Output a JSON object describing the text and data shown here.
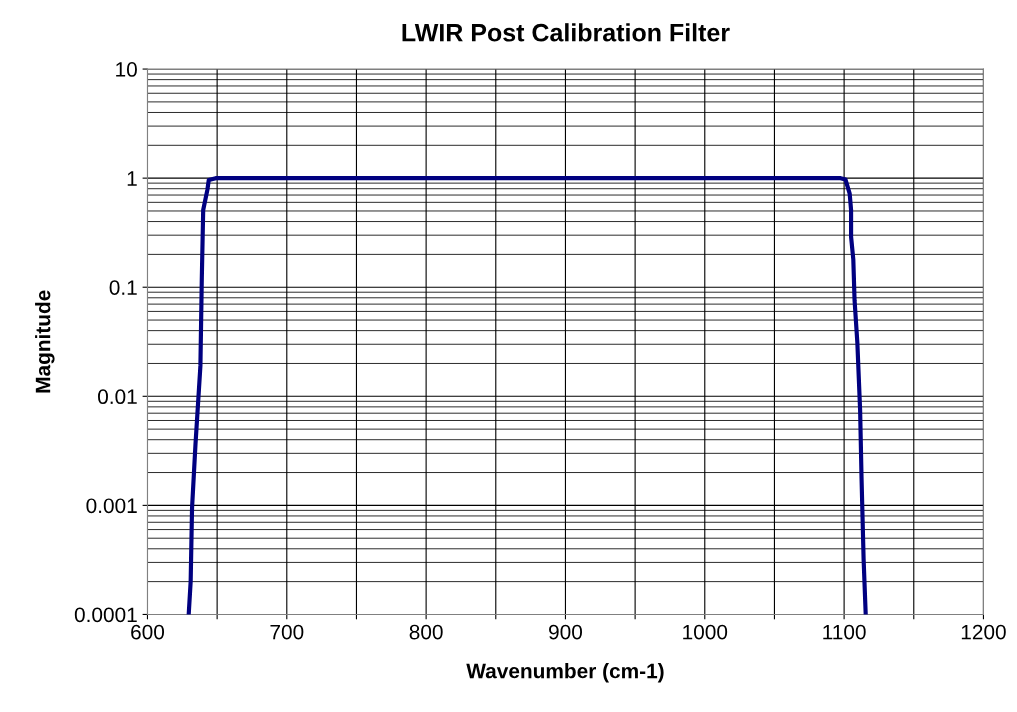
{
  "chart_data": {
    "type": "line",
    "title": "LWIR Post Calibration Filter",
    "xlabel": "Wavenumber (cm-1)",
    "ylabel": "Magnitude",
    "log": "y",
    "grid": true,
    "legend": false,
    "marker": "none",
    "line_style": "solid",
    "xlim": [
      600,
      1200
    ],
    "xticks": [
      600,
      {
        "value": 650,
        "label": null
      },
      700,
      {
        "value": 750,
        "label": null
      },
      800,
      {
        "value": 850,
        "label": null
      },
      900,
      {
        "value": 950,
        "label": null
      },
      1000,
      {
        "value": 1050,
        "label": null
      },
      1100,
      {
        "value": 1150,
        "label": null
      },
      1200
    ],
    "ylim": [
      0.0001,
      10
    ],
    "yticks": [
      0.0001,
      0.001,
      0.01,
      0.1,
      1,
      10
    ],
    "series": [
      {
        "color": "#000080",
        "x": [
          629.6,
          631,
          632,
          634.5,
          638,
          639,
          640,
          643,
          644,
          649,
          1097.5,
          1101,
          1104,
          1105,
          1105,
          1106.6,
          1107.5,
          1109.5,
          1111.5,
          1112.5,
          1114,
          1115.5
        ],
        "values": [
          0.0001,
          0.0002,
          0.00095,
          0.0037,
          0.019,
          0.12,
          0.51,
          0.78,
          0.96,
          1,
          1,
          0.97,
          0.72,
          0.51,
          0.29,
          0.18,
          0.076,
          0.031,
          0.0074,
          0.0018,
          0.00032,
          0.0001
        ]
      }
    ]
  }
}
